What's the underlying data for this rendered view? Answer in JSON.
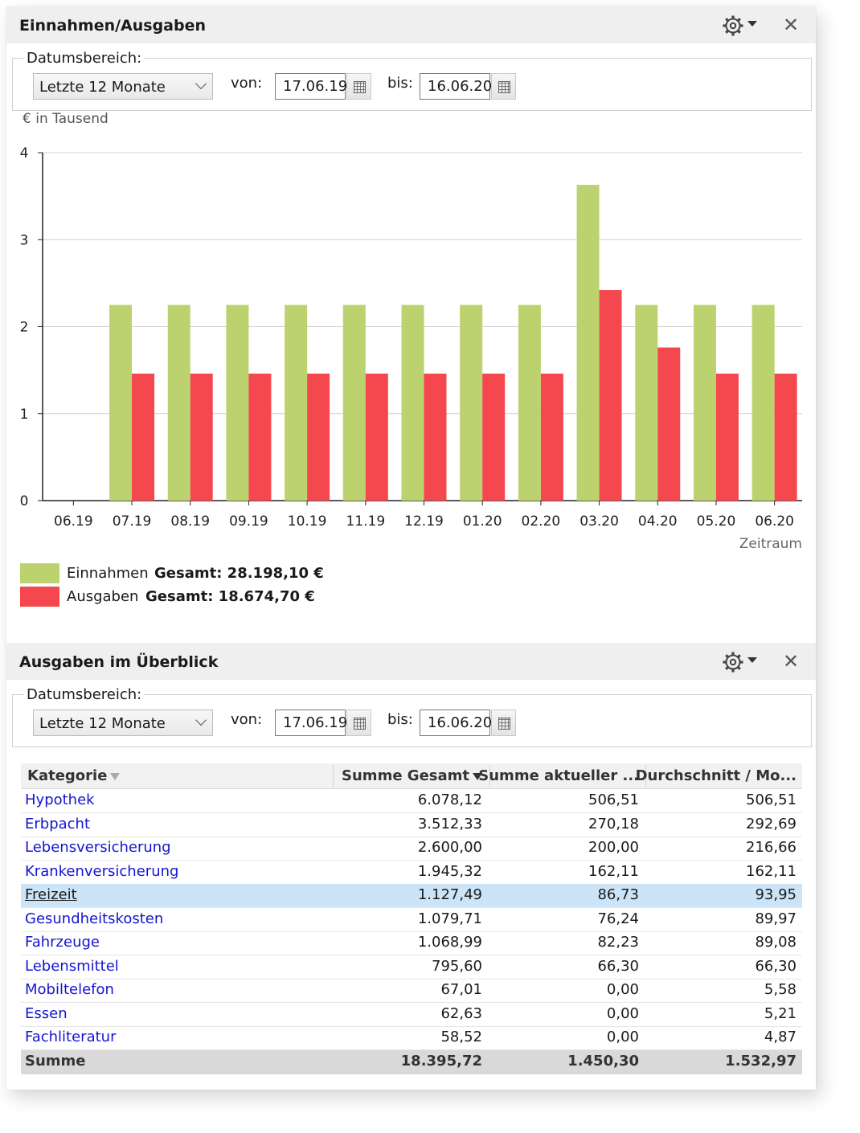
{
  "panel1": {
    "title": "Einnahmen/Ausgaben",
    "date_range_label": "Datumsbereich:",
    "range_selected": "Letzte 12 Monate",
    "from_label": "von:",
    "from_value": "17.06.19",
    "to_label": "bis:",
    "to_value": "16.06.20",
    "unit_label": "€ in Tausend",
    "legend": [
      {
        "name": "Einnahmen",
        "total": "Gesamt: 28.198,10 €",
        "color": "#bcd26e"
      },
      {
        "name": "Ausgaben",
        "total": "Gesamt: 18.674,70 €",
        "color": "#f5484e"
      }
    ]
  },
  "chart_data": {
    "type": "bar",
    "categories": [
      "06.19",
      "07.19",
      "08.19",
      "09.19",
      "10.19",
      "11.19",
      "12.19",
      "01.20",
      "02.20",
      "03.20",
      "04.20",
      "05.20",
      "06.20"
    ],
    "series": [
      {
        "name": "Einnahmen",
        "color": "#bcd26e",
        "values": [
          0,
          2.25,
          2.25,
          2.25,
          2.25,
          2.25,
          2.25,
          2.25,
          2.25,
          3.63,
          2.25,
          2.25,
          2.25
        ]
      },
      {
        "name": "Ausgaben",
        "color": "#f5484e",
        "values": [
          0,
          1.46,
          1.46,
          1.46,
          1.46,
          1.46,
          1.46,
          1.46,
          1.46,
          2.42,
          1.76,
          1.46,
          1.46
        ]
      }
    ],
    "xlabel": "Zeitraum",
    "ylabel": "€ in Tausend",
    "ylim": [
      0,
      4
    ],
    "yticks": [
      0,
      1,
      2,
      3,
      4
    ],
    "grid": true,
    "legend_position": "bottom-left"
  },
  "panel2": {
    "title": "Ausgaben im Überblick",
    "date_range_label": "Datumsbereich:",
    "range_selected": "Letzte 12 Monate",
    "from_label": "von:",
    "from_value": "17.06.19",
    "to_label": "bis:",
    "to_value": "16.06.20",
    "columns": [
      "Kategorie",
      "Summe Gesamt",
      "Summe aktueller ...",
      "Durchschnitt / Mo..."
    ],
    "rows": [
      {
        "category": "Hypothek",
        "total": "6.078,12",
        "current": "506,51",
        "avg": "506,51"
      },
      {
        "category": "Erbpacht",
        "total": "3.512,33",
        "current": "270,18",
        "avg": "292,69"
      },
      {
        "category": "Lebensversicherung",
        "total": "2.600,00",
        "current": "200,00",
        "avg": "216,66"
      },
      {
        "category": "Krankenversicherung",
        "total": "1.945,32",
        "current": "162,11",
        "avg": "162,11"
      },
      {
        "category": "Freizeit",
        "total": "1.127,49",
        "current": "86,73",
        "avg": "93,95"
      },
      {
        "category": "Gesundheitskosten",
        "total": "1.079,71",
        "current": "76,24",
        "avg": "89,97"
      },
      {
        "category": "Fahrzeuge",
        "total": "1.068,99",
        "current": "82,23",
        "avg": "89,08"
      },
      {
        "category": "Lebensmittel",
        "total": "795,60",
        "current": "66,30",
        "avg": "66,30"
      },
      {
        "category": "Mobiltelefon",
        "total": "67,01",
        "current": "0,00",
        "avg": "5,58"
      },
      {
        "category": "Essen",
        "total": "62,63",
        "current": "0,00",
        "avg": "5,21"
      },
      {
        "category": "Fachliteratur",
        "total": "58,52",
        "current": "0,00",
        "avg": "4,87"
      }
    ],
    "selected_row": "Freizeit",
    "sum": {
      "label": "Summe",
      "total": "18.395,72",
      "current": "1.450,30",
      "avg": "1.532,97"
    }
  }
}
